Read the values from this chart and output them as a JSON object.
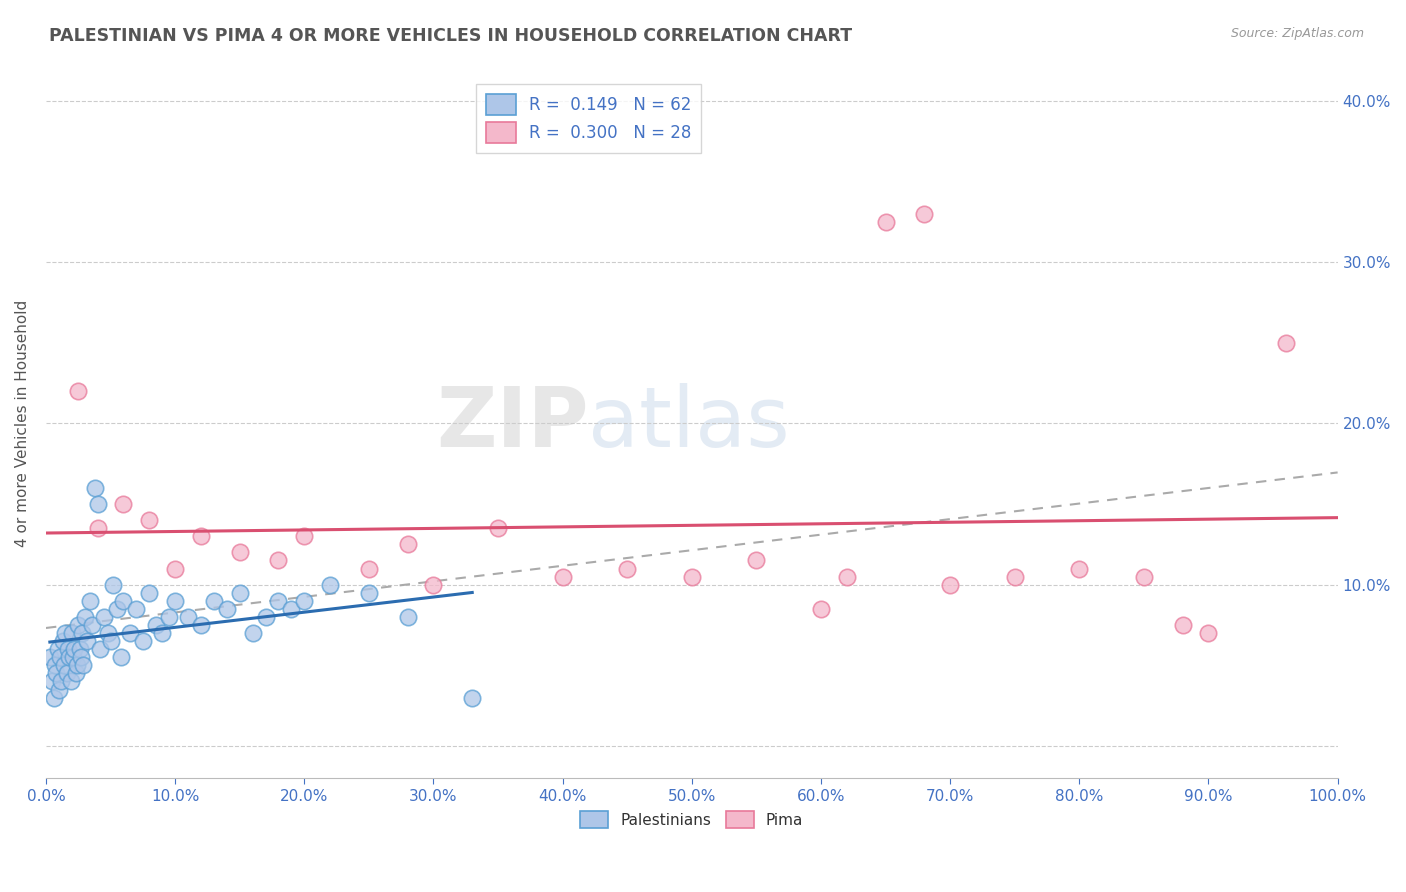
{
  "title": "PALESTINIAN VS PIMA 4 OR MORE VEHICLES IN HOUSEHOLD CORRELATION CHART",
  "source": "Source: ZipAtlas.com",
  "ylabel": "4 or more Vehicles in Household",
  "watermark": "ZIPatlas",
  "legend_labels": [
    "Palestinians",
    "Pima"
  ],
  "legend_r": [
    0.149,
    0.3
  ],
  "legend_n": [
    62,
    28
  ],
  "blue_scatter_face": "#aec6e8",
  "blue_scatter_edge": "#5a9fd4",
  "pink_scatter_face": "#f4b8cb",
  "pink_scatter_edge": "#e8799a",
  "blue_line_color": "#2b6cb0",
  "pink_line_color": "#d94f70",
  "dash_line_color": "#aaaaaa",
  "background_color": "#ffffff",
  "grid_color": "#cccccc",
  "title_color": "#555555",
  "axis_tick_color": "#4472c4",
  "xlim": [
    0.0,
    100.0
  ],
  "ylim": [
    -2.0,
    42.0
  ],
  "xticks": [
    0.0,
    10.0,
    20.0,
    30.0,
    40.0,
    50.0,
    60.0,
    70.0,
    80.0,
    90.0,
    100.0
  ],
  "yticks": [
    0.0,
    10.0,
    20.0,
    30.0,
    40.0
  ],
  "palestinians_x": [
    0.3,
    0.5,
    0.6,
    0.7,
    0.8,
    0.9,
    1.0,
    1.1,
    1.2,
    1.3,
    1.4,
    1.5,
    1.6,
    1.7,
    1.8,
    1.9,
    2.0,
    2.1,
    2.2,
    2.3,
    2.4,
    2.5,
    2.6,
    2.7,
    2.8,
    2.9,
    3.0,
    3.2,
    3.4,
    3.6,
    3.8,
    4.0,
    4.2,
    4.5,
    4.8,
    5.0,
    5.2,
    5.5,
    5.8,
    6.0,
    6.5,
    7.0,
    7.5,
    8.0,
    8.5,
    9.0,
    9.5,
    10.0,
    11.0,
    12.0,
    13.0,
    14.0,
    15.0,
    16.0,
    17.0,
    18.0,
    19.0,
    20.0,
    22.0,
    25.0,
    28.0,
    33.0
  ],
  "palestinians_y": [
    5.5,
    4.0,
    3.0,
    5.0,
    4.5,
    6.0,
    3.5,
    5.5,
    4.0,
    6.5,
    5.0,
    7.0,
    4.5,
    6.0,
    5.5,
    4.0,
    7.0,
    5.5,
    6.0,
    4.5,
    5.0,
    7.5,
    6.0,
    5.5,
    7.0,
    5.0,
    8.0,
    6.5,
    9.0,
    7.5,
    16.0,
    15.0,
    6.0,
    8.0,
    7.0,
    6.5,
    10.0,
    8.5,
    5.5,
    9.0,
    7.0,
    8.5,
    6.5,
    9.5,
    7.5,
    7.0,
    8.0,
    9.0,
    8.0,
    7.5,
    9.0,
    8.5,
    9.5,
    7.0,
    8.0,
    9.0,
    8.5,
    9.0,
    10.0,
    9.5,
    8.0,
    3.0
  ],
  "pima_x": [
    2.5,
    4.0,
    6.0,
    8.0,
    10.0,
    12.0,
    15.0,
    18.0,
    20.0,
    25.0,
    28.0,
    30.0,
    35.0,
    40.0,
    45.0,
    50.0,
    55.0,
    60.0,
    62.0,
    65.0,
    68.0,
    70.0,
    75.0,
    80.0,
    85.0,
    88.0,
    90.0,
    96.0
  ],
  "pima_y": [
    22.0,
    13.5,
    15.0,
    14.0,
    11.0,
    13.0,
    12.0,
    11.5,
    13.0,
    11.0,
    12.5,
    10.0,
    13.5,
    10.5,
    11.0,
    10.5,
    11.5,
    8.5,
    10.5,
    32.5,
    33.0,
    10.0,
    10.5,
    11.0,
    10.5,
    7.5,
    7.0,
    25.0
  ],
  "scatter_size": 140
}
